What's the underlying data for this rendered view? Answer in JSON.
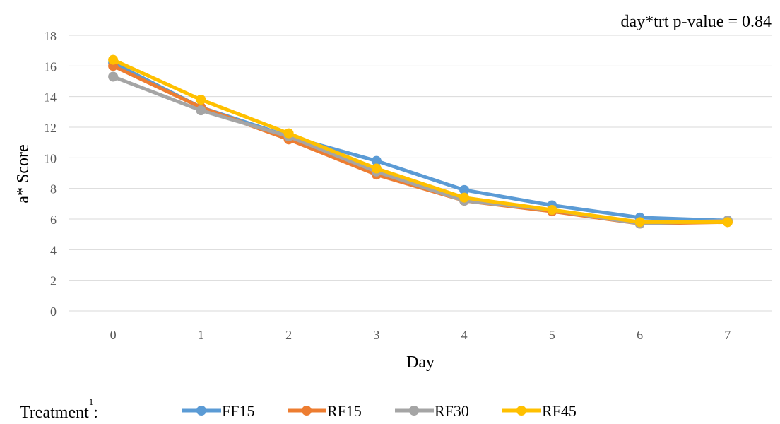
{
  "chart_data": {
    "type": "line",
    "title": "",
    "annotation": "day*trt p-value = 0.84",
    "xlabel": "Day",
    "ylabel": "a* Score",
    "categories": [
      "0",
      "1",
      "2",
      "3",
      "4",
      "5",
      "6",
      "7"
    ],
    "ylim": [
      0,
      18
    ],
    "yticks": [
      "0",
      "2",
      "4",
      "6",
      "8",
      "10",
      "12",
      "14",
      "16",
      "18"
    ],
    "grid": true,
    "legend_position": "bottom",
    "legend_title": "Treatment",
    "legend_title_superscript": "1",
    "legend_title_suffix": ":",
    "series": [
      {
        "name": "FF15",
        "color": "#5B9BD5",
        "values": [
          16.2,
          13.3,
          11.4,
          9.8,
          7.9,
          6.9,
          6.1,
          5.9
        ]
      },
      {
        "name": "RF15",
        "color": "#ED7D31",
        "values": [
          16.0,
          13.3,
          11.2,
          8.9,
          7.2,
          6.5,
          5.7,
          5.8
        ]
      },
      {
        "name": "RF30",
        "color": "#A5A5A5",
        "values": [
          15.3,
          13.1,
          11.4,
          9.1,
          7.2,
          6.6,
          5.7,
          5.9
        ]
      },
      {
        "name": "RF45",
        "color": "#FFC000",
        "values": [
          16.4,
          13.8,
          11.6,
          9.3,
          7.4,
          6.6,
          5.8,
          5.8
        ]
      }
    ],
    "gridline_color": "#D9D9D9",
    "axis_line_color": "#D9D9D9"
  }
}
